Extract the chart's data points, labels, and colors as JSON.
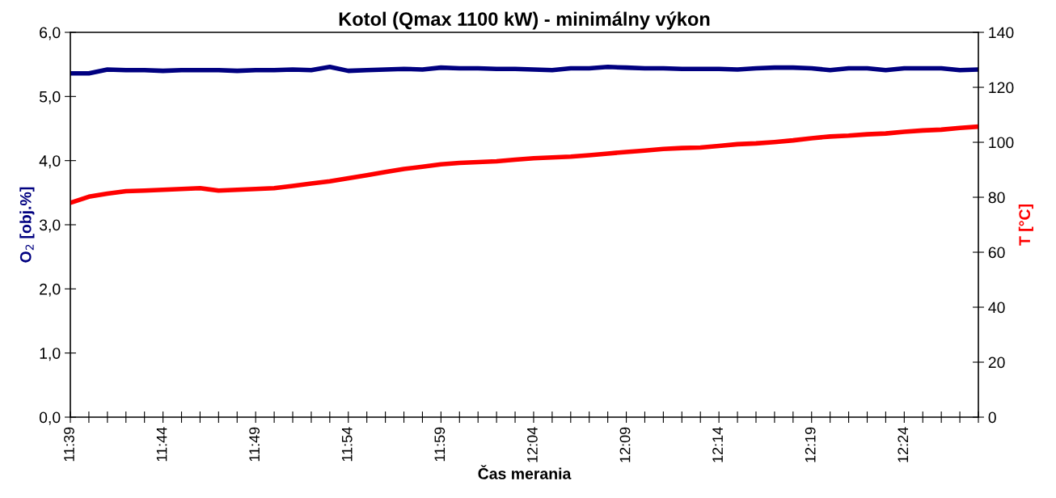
{
  "chart_data": {
    "type": "line",
    "title": "Kotol (Qmax 1100 kW) - minimálny výkon",
    "xlabel": "Čas merania",
    "ylabel": "O$_{2}$ [obj.%]",
    "y2label": "T [°C]",
    "categories": [
      "11:39",
      null,
      null,
      null,
      null,
      "11:44",
      null,
      null,
      null,
      null,
      "11:49",
      null,
      null,
      null,
      null,
      "11:54",
      null,
      null,
      null,
      null,
      "11:59",
      null,
      null,
      null,
      null,
      "12:04",
      null,
      null,
      null,
      null,
      "12:09",
      null,
      null,
      null,
      null,
      "12:14",
      null,
      null,
      null,
      null,
      "12:19",
      null,
      null,
      null,
      null,
      "12:24",
      null,
      null,
      null,
      null
    ],
    "series": [
      {
        "name": null,
        "color": "#000080",
        "values": [
          5.36,
          5.36,
          5.42,
          5.41,
          5.41,
          5.4,
          5.41,
          5.41,
          5.41,
          5.4,
          5.41,
          5.41,
          5.42,
          5.41,
          5.46,
          5.4,
          5.41,
          5.42,
          5.43,
          5.42,
          5.45,
          5.44,
          5.44,
          5.43,
          5.43,
          5.42,
          5.41,
          5.44,
          5.44,
          5.46,
          5.45,
          5.44,
          5.44,
          5.43,
          5.43,
          5.43,
          5.42,
          5.44,
          5.45,
          5.45,
          5.44,
          5.41,
          5.44,
          5.44,
          5.41,
          5.44,
          5.44,
          5.44,
          5.41,
          5.42
        ]
      },
      {
        "name": null,
        "color": "#ff0000",
        "axis": "y2",
        "values": [
          78,
          80.2,
          81.3,
          82.2,
          82.4,
          82.7,
          83,
          83.3,
          82.4,
          82.7,
          83,
          83.3,
          84.1,
          85,
          85.8,
          86.9,
          88,
          89.2,
          90.3,
          91.1,
          92,
          92.5,
          92.8,
          93.1,
          93.7,
          94.2,
          94.5,
          94.8,
          95.3,
          95.9,
          96.5,
          97,
          97.6,
          97.9,
          98.1,
          98.7,
          99.3,
          99.6,
          100.1,
          100.7,
          101.5,
          102.1,
          102.4,
          102.9,
          103.2,
          103.8,
          104.3,
          104.6,
          105.2,
          105.7
        ]
      }
    ],
    "ylim": [
      0,
      6
    ],
    "yticks": [
      {
        "value": 0,
        "label": "0,0"
      },
      {
        "value": 1,
        "label": "1,0"
      },
      {
        "value": 2,
        "label": "2,0"
      },
      {
        "value": 3,
        "label": "3,0"
      },
      {
        "value": 4,
        "label": "4,0"
      },
      {
        "value": 5,
        "label": "5,0"
      },
      {
        "value": 6,
        "label": "6,0"
      }
    ],
    "y2lim": [
      0,
      140
    ],
    "y2ticks": [
      0,
      20,
      40,
      60,
      80,
      100,
      120,
      140
    ],
    "grid": false,
    "legend": false,
    "marker": "none",
    "line_style": "solid"
  }
}
